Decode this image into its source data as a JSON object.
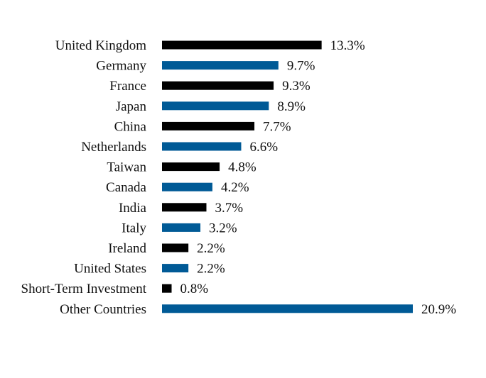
{
  "chart_data": {
    "type": "bar",
    "orientation": "horizontal",
    "title": "",
    "xlabel": "",
    "ylabel": "",
    "grid": false,
    "xlim": [
      0,
      20.9
    ],
    "value_suffix": "%",
    "categories": [
      "United Kingdom",
      "Germany",
      "France",
      "Japan",
      "China",
      "Netherlands",
      "Taiwan",
      "Canada",
      "India",
      "Italy",
      "Ireland",
      "United States",
      "Short-Term Investment",
      "Other Countries"
    ],
    "values": [
      13.3,
      9.7,
      9.3,
      8.9,
      7.7,
      6.6,
      4.8,
      4.2,
      3.7,
      3.2,
      2.2,
      2.2,
      0.8,
      20.9
    ],
    "value_labels": [
      "13.3%",
      "9.7%",
      "9.3%",
      "8.9%",
      "7.7%",
      "6.6%",
      "4.8%",
      "4.2%",
      "3.7%",
      "3.2%",
      "2.2%",
      "2.2%",
      "0.8%",
      "20.9%"
    ],
    "bar_colors": [
      "#000000",
      "#005a96"
    ]
  }
}
